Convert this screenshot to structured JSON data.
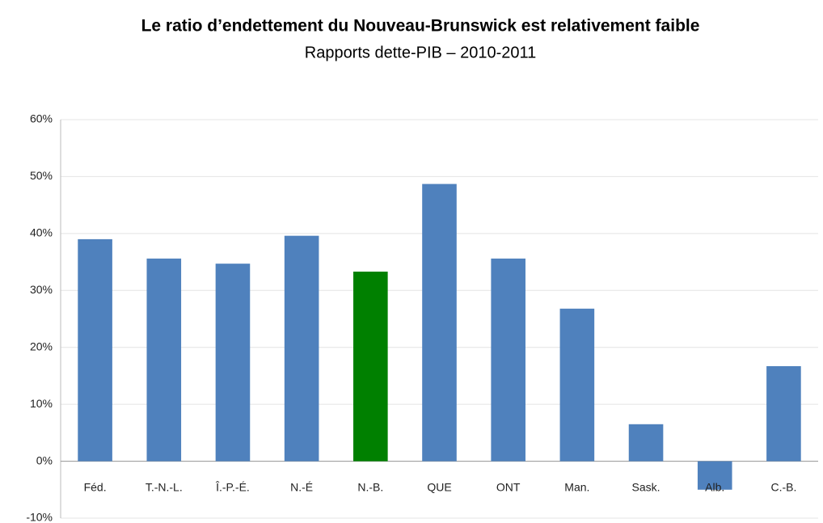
{
  "chart_data": {
    "type": "bar",
    "title": "Le ratio d’endettement du Nouveau-Brunswick est relativement faible",
    "subtitle": "Rapports dette-PIB – 2010-2011",
    "categories": [
      "Féd.",
      "T.-N.-L.",
      "Î.-P.-É.",
      "N.-É",
      "N.-B.",
      "QUE",
      "ONT",
      "Man.",
      "Sask.",
      "Alb.",
      "C.-B."
    ],
    "values": [
      39.0,
      35.6,
      34.7,
      39.6,
      33.3,
      48.7,
      35.6,
      26.8,
      6.5,
      -5.0,
      16.7
    ],
    "colors": [
      "#4f81bd",
      "#4f81bd",
      "#4f81bd",
      "#4f81bd",
      "#008000",
      "#4f81bd",
      "#4f81bd",
      "#4f81bd",
      "#4f81bd",
      "#4f81bd",
      "#4f81bd"
    ],
    "ylim": [
      -10,
      60
    ],
    "yticks": [
      {
        "value": -10,
        "label": "-10%"
      },
      {
        "value": 0,
        "label": "0%"
      },
      {
        "value": 10,
        "label": "10%"
      },
      {
        "value": 20,
        "label": "20%"
      },
      {
        "value": 30,
        "label": "30%"
      },
      {
        "value": 40,
        "label": "40%"
      },
      {
        "value": 50,
        "label": "50%"
      },
      {
        "value": 60,
        "label": "60%"
      }
    ],
    "grid": true
  }
}
